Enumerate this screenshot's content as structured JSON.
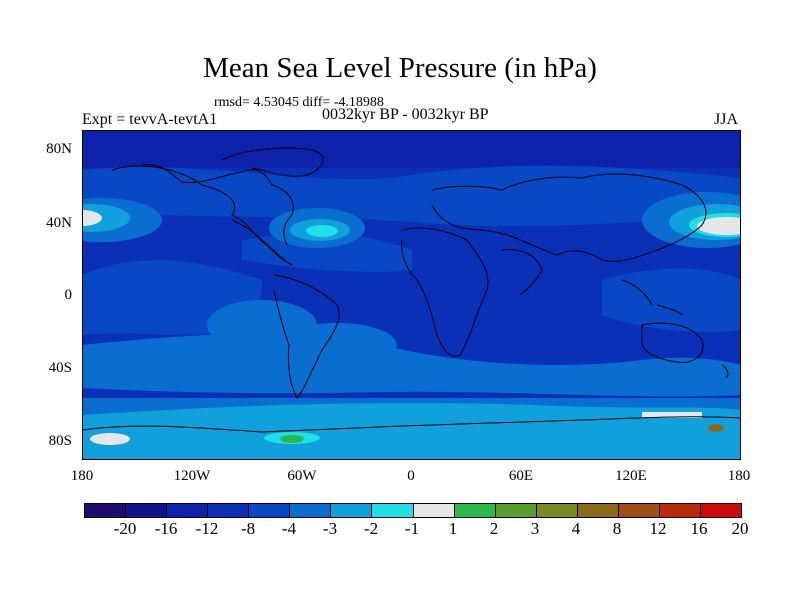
{
  "title": "Mean Sea Level Pressure (in hPa)",
  "stats": "rmsd= 4.53045 diff= -4.18988",
  "experiment": "Expt = tevvA-tevtA1",
  "period": "0032kyr BP - 0032kyr BP",
  "season": "JJA",
  "map": {
    "projection": "cylindrical equidistant",
    "lon_range": [
      -180,
      180
    ],
    "lat_range": [
      -90,
      90
    ],
    "y_tick_labels": [
      "80N",
      "40N",
      "0",
      "40S",
      "80S"
    ],
    "x_tick_labels": [
      "180",
      "120W",
      "60W",
      "0",
      "60E",
      "120E",
      "180"
    ]
  },
  "colorbar": {
    "levels": [
      "-20",
      "-16",
      "-12",
      "-8",
      "-4",
      "-3",
      "-2",
      "-1",
      "1",
      "2",
      "3",
      "4",
      "8",
      "12",
      "16",
      "20"
    ],
    "colors": [
      "#200a6e",
      "#10128e",
      "#0c22aa",
      "#0a30b8",
      "#0848c4",
      "#0a6ed0",
      "#10a0dc",
      "#1ee0e6",
      "#e6e6e6",
      "#2ab84a",
      "#5a9e2c",
      "#7a8a20",
      "#8a6a18",
      "#a05010",
      "#b82a08",
      "#d00808"
    ]
  }
}
